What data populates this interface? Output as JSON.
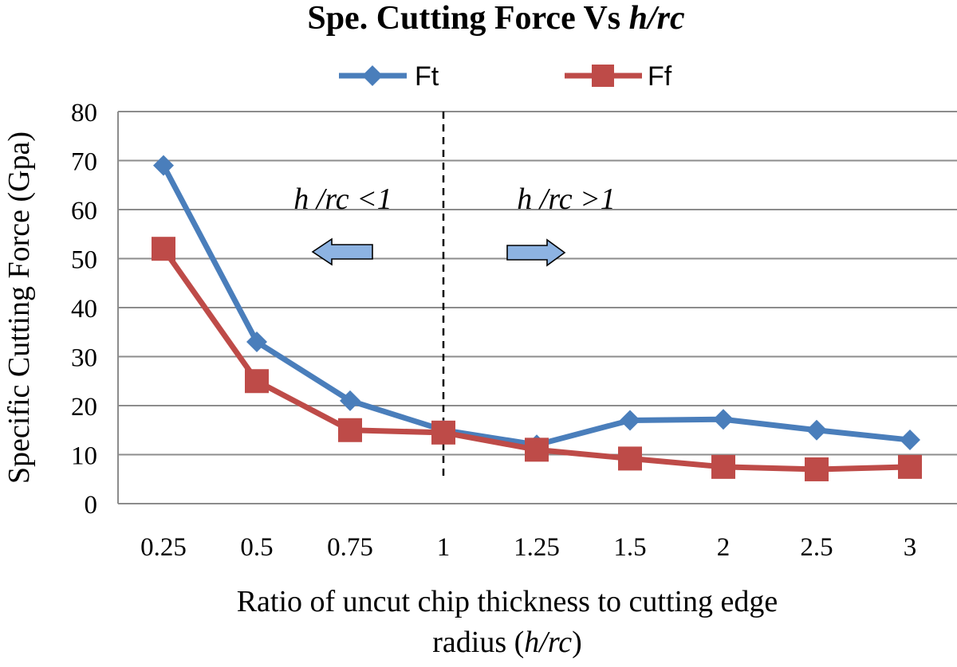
{
  "chart_data": {
    "type": "line",
    "title_prefix": "Spe. Cutting Force Vs ",
    "title_italic": "h/rc",
    "ylabel": "Specific Cutting  Force (Gpa)",
    "xlabel_line1": "Ratio of uncut chip thickness to cutting edge",
    "xlabel_line2_prefix": "radius (",
    "xlabel_line2_italic": "h/rc",
    "xlabel_line2_suffix": ")",
    "categories": [
      "0.25",
      "0.5",
      "0.75",
      "1",
      "1.25",
      "1.5",
      "2",
      "2.5",
      "3"
    ],
    "ylim": [
      0,
      80
    ],
    "yticks": [
      "0",
      "10",
      "20",
      "30",
      "40",
      "50",
      "60",
      "70",
      "80"
    ],
    "grid": "horizontal",
    "legend_position": "top",
    "series": [
      {
        "name": "Ft",
        "color": "#4a7ebb",
        "marker": "diamond",
        "values": [
          69,
          33,
          21,
          15,
          12,
          17,
          17.2,
          15,
          13
        ]
      },
      {
        "name": "Ff",
        "color": "#be4b48",
        "marker": "square",
        "values": [
          52,
          25,
          15,
          14.5,
          11,
          9.2,
          7.5,
          7,
          7.5
        ]
      }
    ],
    "annotations": {
      "left_region": "h /rc <1",
      "right_region": "h /rc >1",
      "left_arrow_color": "#8db3e2",
      "right_arrow_color": "#8db3e2",
      "divider_at": "1"
    }
  }
}
